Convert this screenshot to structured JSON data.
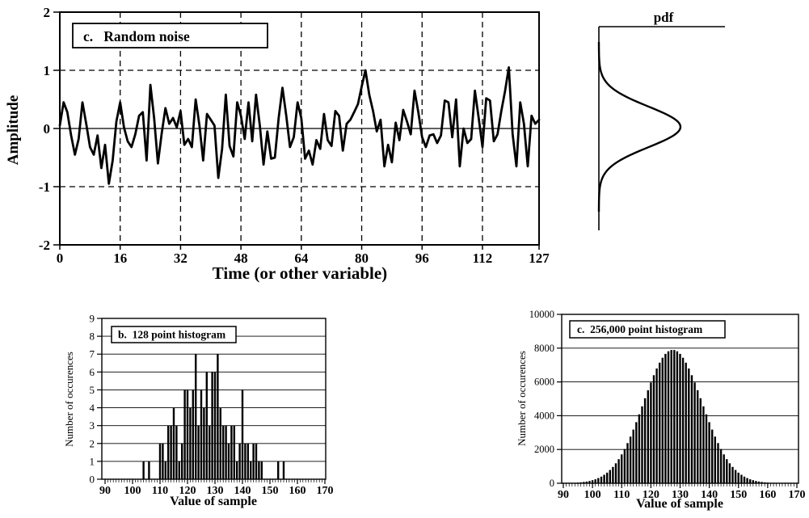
{
  "figure": {
    "background": "#ffffff",
    "ink": "#000000",
    "description": "Figure with a random noise signal, its Gaussian pdf, and two histograms"
  },
  "chart_data": [
    {
      "id": "random-noise-signal",
      "type": "line",
      "title": "c.   Random noise",
      "xlabel": "Time (or other variable)",
      "ylabel": "Amplitude",
      "xlim": [
        0,
        127
      ],
      "ylim": [
        -2,
        2
      ],
      "x_ticks": [
        0,
        16,
        32,
        48,
        64,
        80,
        96,
        112,
        127
      ],
      "y_ticks": [
        2,
        1,
        0,
        -1,
        -2
      ],
      "grid": {
        "vertical_dashed_at": [
          16,
          32,
          48,
          64,
          80,
          96,
          112
        ],
        "horizontal_dashed_at": [
          1,
          -1
        ],
        "horizontal_solid_at": [
          0
        ]
      },
      "values": [
        0.05,
        0.45,
        0.28,
        -0.12,
        -0.45,
        -0.18,
        0.45,
        0.08,
        -0.32,
        -0.45,
        -0.12,
        -0.68,
        -0.28,
        -0.95,
        -0.55,
        0.12,
        0.45,
        0.02,
        -0.22,
        -0.32,
        -0.1,
        0.22,
        0.28,
        -0.55,
        0.75,
        0.18,
        -0.6,
        -0.08,
        0.35,
        0.08,
        0.18,
        0.02,
        0.3,
        -0.28,
        -0.18,
        -0.32,
        0.5,
        0.05,
        -0.55,
        0.25,
        0.15,
        0.05,
        -0.85,
        -0.35,
        0.58,
        -0.3,
        -0.48,
        0.45,
        0.22,
        -0.18,
        0.45,
        -0.22,
        0.58,
        0.05,
        -0.62,
        -0.05,
        -0.52,
        -0.5,
        0.18,
        0.7,
        0.22,
        -0.32,
        -0.15,
        0.45,
        0.18,
        -0.52,
        -0.38,
        -0.62,
        -0.2,
        -0.35,
        0.25,
        -0.2,
        -0.3,
        0.3,
        0.22,
        -0.38,
        0.08,
        0.15,
        0.28,
        0.42,
        0.72,
        1.0,
        0.58,
        0.3,
        -0.05,
        0.15,
        -0.65,
        -0.28,
        -0.58,
        0.1,
        -0.2,
        0.32,
        0.12,
        -0.1,
        0.65,
        0.28,
        -0.15,
        -0.32,
        -0.12,
        -0.1,
        -0.25,
        -0.12,
        0.48,
        0.45,
        -0.15,
        0.5,
        -0.65,
        0.0,
        -0.25,
        -0.18,
        0.65,
        0.18,
        -0.32,
        0.52,
        0.48,
        -0.22,
        -0.1,
        0.3,
        0.65,
        1.05,
        -0.1,
        -0.65,
        0.45,
        0.08,
        -0.65,
        0.22,
        0.08,
        0.15
      ]
    },
    {
      "id": "pdf-curve",
      "type": "line",
      "title": "pdf",
      "description": "Gaussian probability density function drawn sideways; vertical axis shares the signal amplitude scale, horizontal extent is probability density",
      "mean": 0,
      "sigma": 0.36,
      "amplitude_range": [
        -1.5,
        1.5
      ]
    },
    {
      "id": "histogram-128-point",
      "type": "bar",
      "title": "b.  128 point histogram",
      "xlabel": "Value of sample",
      "ylabel": "Number of occurences",
      "xlim": [
        90,
        170
      ],
      "ylim": [
        0,
        9
      ],
      "x_ticks": [
        90,
        100,
        110,
        120,
        130,
        140,
        150,
        160,
        170
      ],
      "y_ticks": [
        0,
        1,
        2,
        3,
        4,
        5,
        6,
        7,
        8,
        9
      ],
      "bars": [
        [
          104,
          1
        ],
        [
          106,
          1
        ],
        [
          110,
          2
        ],
        [
          111,
          2
        ],
        [
          112,
          1
        ],
        [
          113,
          3
        ],
        [
          114,
          3
        ],
        [
          115,
          4
        ],
        [
          116,
          3
        ],
        [
          117,
          1
        ],
        [
          118,
          2
        ],
        [
          119,
          5
        ],
        [
          120,
          5
        ],
        [
          121,
          4
        ],
        [
          122,
          5
        ],
        [
          123,
          7
        ],
        [
          124,
          3
        ],
        [
          125,
          5
        ],
        [
          126,
          4
        ],
        [
          127,
          6
        ],
        [
          128,
          3
        ],
        [
          129,
          6
        ],
        [
          130,
          6
        ],
        [
          131,
          7
        ],
        [
          132,
          4
        ],
        [
          133,
          3
        ],
        [
          134,
          3
        ],
        [
          135,
          2
        ],
        [
          136,
          3
        ],
        [
          137,
          3
        ],
        [
          138,
          1
        ],
        [
          139,
          2
        ],
        [
          140,
          5
        ],
        [
          141,
          2
        ],
        [
          142,
          2
        ],
        [
          143,
          1
        ],
        [
          144,
          2
        ],
        [
          145,
          2
        ],
        [
          146,
          1
        ],
        [
          147,
          1
        ],
        [
          153,
          1
        ],
        [
          155,
          1
        ]
      ]
    },
    {
      "id": "histogram-256000-point",
      "type": "bar",
      "title": "c.  256,000 point histogram",
      "xlabel": "Value of sample",
      "ylabel": "Number of occurences",
      "xlim": [
        90,
        170
      ],
      "ylim": [
        0,
        10000
      ],
      "x_ticks": [
        90,
        100,
        110,
        120,
        130,
        140,
        150,
        160,
        170
      ],
      "y_ticks": [
        0,
        2000,
        4000,
        6000,
        8000,
        10000
      ],
      "values_start": 90,
      "counts": [
        7,
        10,
        14,
        21,
        29,
        40,
        55,
        75,
        102,
        136,
        180,
        236,
        306,
        393,
        500,
        629,
        784,
        966,
        1180,
        1428,
        1708,
        2026,
        2377,
        2762,
        3177,
        3617,
        4079,
        4554,
        5032,
        5506,
        5965,
        6397,
        6792,
        7141,
        7432,
        7658,
        7812,
        7890,
        7890,
        7812,
        7658,
        7432,
        7141,
        6792,
        6397,
        5965,
        5506,
        5032,
        4554,
        4079,
        3617,
        3177,
        2762,
        2377,
        2026,
        1708,
        1428,
        1180,
        966,
        784,
        629,
        500,
        393,
        306,
        236,
        180,
        136,
        102,
        75,
        55,
        40,
        29,
        21,
        14,
        10,
        7,
        5,
        3,
        2,
        2,
        1
      ]
    }
  ]
}
